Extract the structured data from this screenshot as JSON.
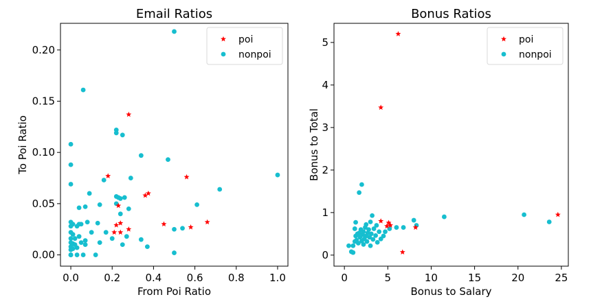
{
  "chart_data": [
    {
      "type": "scatter",
      "title": "Email Ratios",
      "xlabel": "From Poi Ratio",
      "ylabel": "To Poi Ratio",
      "xlim": [
        -0.05,
        1.05
      ],
      "ylim": [
        -0.011,
        0.226
      ],
      "xticks": [
        0.0,
        0.2,
        0.4,
        0.6,
        0.8,
        1.0
      ],
      "xtick_labels": [
        "0.0",
        "0.2",
        "0.4",
        "0.6",
        "0.8",
        "1.0"
      ],
      "yticks": [
        0.0,
        0.05,
        0.1,
        0.15,
        0.2
      ],
      "ytick_labels": [
        "0.00",
        "0.05",
        "0.10",
        "0.15",
        "0.20"
      ],
      "legend_position": "top-right",
      "series": [
        {
          "name": "poi",
          "marker": "star",
          "color": "#ff0000",
          "points": [
            [
              0.18,
              0.077
            ],
            [
              0.28,
              0.137
            ],
            [
              0.23,
              0.048
            ],
            [
              0.21,
              0.022
            ],
            [
              0.22,
              0.029
            ],
            [
              0.24,
              0.031
            ],
            [
              0.24,
              0.022
            ],
            [
              0.28,
              0.025
            ],
            [
              0.36,
              0.058
            ],
            [
              0.375,
              0.06
            ],
            [
              0.45,
              0.03
            ],
            [
              0.56,
              0.076
            ],
            [
              0.58,
              0.027
            ],
            [
              0.66,
              0.032
            ]
          ]
        },
        {
          "name": "nonpoi",
          "marker": "circle",
          "color": "#17becf",
          "points": [
            [
              0.0,
              0.108
            ],
            [
              0.0,
              0.088
            ],
            [
              0.0,
              0.069
            ],
            [
              0.0,
              0.032
            ],
            [
              0.0,
              0.028
            ],
            [
              0.0,
              0.022
            ],
            [
              0.0,
              0.016
            ],
            [
              0.0,
              0.012
            ],
            [
              0.0,
              0.008
            ],
            [
              0.0,
              0.005
            ],
            [
              0.0,
              0.0
            ],
            [
              0.0,
              0.0
            ],
            [
              0.0,
              0.0
            ],
            [
              0.01,
              0.03
            ],
            [
              0.01,
              0.02
            ],
            [
              0.01,
              0.011
            ],
            [
              0.01,
              0.006
            ],
            [
              0.02,
              0.016
            ],
            [
              0.02,
              0.01
            ],
            [
              0.03,
              0.028
            ],
            [
              0.03,
              0.007
            ],
            [
              0.03,
              0.0
            ],
            [
              0.04,
              0.046
            ],
            [
              0.04,
              0.03
            ],
            [
              0.04,
              0.018
            ],
            [
              0.05,
              0.03
            ],
            [
              0.05,
              0.012
            ],
            [
              0.06,
              0.161
            ],
            [
              0.06,
              0.0
            ],
            [
              0.07,
              0.047
            ],
            [
              0.07,
              0.01
            ],
            [
              0.07,
              0.014
            ],
            [
              0.08,
              0.032
            ],
            [
              0.09,
              0.06
            ],
            [
              0.1,
              0.022
            ],
            [
              0.12,
              0.0
            ],
            [
              0.13,
              0.031
            ],
            [
              0.14,
              0.049
            ],
            [
              0.14,
              0.012
            ],
            [
              0.16,
              0.073
            ],
            [
              0.17,
              0.022
            ],
            [
              0.2,
              0.016
            ],
            [
              0.22,
              0.122
            ],
            [
              0.22,
              0.119
            ],
            [
              0.22,
              0.057
            ],
            [
              0.22,
              0.05
            ],
            [
              0.23,
              0.056
            ],
            [
              0.24,
              0.055
            ],
            [
              0.24,
              0.04
            ],
            [
              0.25,
              0.117
            ],
            [
              0.25,
              0.01
            ],
            [
              0.26,
              0.056
            ],
            [
              0.27,
              0.018
            ],
            [
              0.28,
              0.045
            ],
            [
              0.29,
              0.075
            ],
            [
              0.34,
              0.097
            ],
            [
              0.34,
              0.015
            ],
            [
              0.37,
              0.008
            ],
            [
              0.47,
              0.093
            ],
            [
              0.5,
              0.218
            ],
            [
              0.5,
              0.025
            ],
            [
              0.5,
              0.002
            ],
            [
              0.54,
              0.026
            ],
            [
              0.61,
              0.049
            ],
            [
              0.72,
              0.064
            ],
            [
              1.0,
              0.078
            ]
          ]
        }
      ]
    },
    {
      "type": "scatter",
      "title": "Bonus Ratios",
      "xlabel": "Bonus to Salary",
      "ylabel": "Bonus to Total",
      "xlim": [
        -1.2,
        25.8
      ],
      "ylim": [
        -0.26,
        5.45
      ],
      "xticks": [
        0,
        5,
        10,
        15,
        20,
        25
      ],
      "xtick_labels": [
        "0",
        "5",
        "10",
        "15",
        "20",
        "25"
      ],
      "yticks": [
        0,
        1,
        2,
        3,
        4,
        5
      ],
      "ytick_labels": [
        "0",
        "1",
        "2",
        "3",
        "4",
        "5"
      ],
      "legend_position": "top-right",
      "series": [
        {
          "name": "poi",
          "marker": "star",
          "color": "#ff0000",
          "points": [
            [
              6.2,
              5.2
            ],
            [
              4.2,
              3.47
            ],
            [
              4.2,
              0.8
            ],
            [
              4.9,
              0.68
            ],
            [
              5.1,
              0.76
            ],
            [
              5.3,
              0.7
            ],
            [
              6.7,
              0.07
            ],
            [
              8.2,
              0.65
            ],
            [
              24.6,
              0.95
            ]
          ]
        },
        {
          "name": "nonpoi",
          "marker": "circle",
          "color": "#17becf",
          "points": [
            [
              0.5,
              0.22
            ],
            [
              0.8,
              0.08
            ],
            [
              1.0,
              0.06
            ],
            [
              1.2,
              0.32
            ],
            [
              1.0,
              0.22
            ],
            [
              1.3,
              0.45
            ],
            [
              1.2,
              0.62
            ],
            [
              1.3,
              0.77
            ],
            [
              1.4,
              0.35
            ],
            [
              1.5,
              0.5
            ],
            [
              1.6,
              0.28
            ],
            [
              1.7,
              0.52
            ],
            [
              1.7,
              1.47
            ],
            [
              1.8,
              0.42
            ],
            [
              1.9,
              0.6
            ],
            [
              2.0,
              0.33
            ],
            [
              2.0,
              1.66
            ],
            [
              2.1,
              0.48
            ],
            [
              2.2,
              0.25
            ],
            [
              2.2,
              0.55
            ],
            [
              2.3,
              0.38
            ],
            [
              2.4,
              0.65
            ],
            [
              2.5,
              0.45
            ],
            [
              2.5,
              0.72
            ],
            [
              2.6,
              0.32
            ],
            [
              2.7,
              0.52
            ],
            [
              2.8,
              0.6
            ],
            [
              2.9,
              0.42
            ],
            [
              3.0,
              0.78
            ],
            [
              3.0,
              0.22
            ],
            [
              3.1,
              0.5
            ],
            [
              3.2,
              0.93
            ],
            [
              3.3,
              0.37
            ],
            [
              3.4,
              0.62
            ],
            [
              3.6,
              0.46
            ],
            [
              3.7,
              0.7
            ],
            [
              3.8,
              0.3
            ],
            [
              4.0,
              0.55
            ],
            [
              4.2,
              0.38
            ],
            [
              4.5,
              0.45
            ],
            [
              4.7,
              0.55
            ],
            [
              5.2,
              0.62
            ],
            [
              6.0,
              0.65
            ],
            [
              6.8,
              0.65
            ],
            [
              8.0,
              0.82
            ],
            [
              8.3,
              0.7
            ],
            [
              11.5,
              0.9
            ],
            [
              20.7,
              0.95
            ],
            [
              23.6,
              0.78
            ]
          ]
        }
      ]
    }
  ]
}
